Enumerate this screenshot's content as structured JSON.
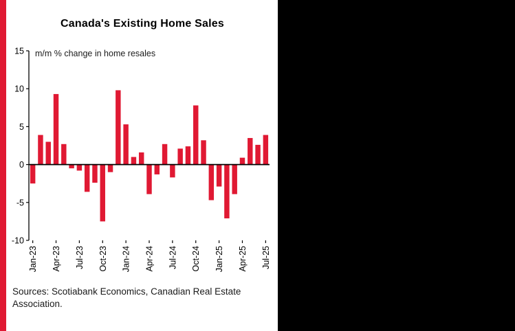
{
  "header": {
    "title": "Canada's Existing Home Sales"
  },
  "colors": {
    "accent_red": "#E01933",
    "panel_black": "#000000",
    "background": "#FFFFFF",
    "axis": "#000000"
  },
  "chart_data": {
    "type": "bar",
    "title": "Canada's Existing Home Sales",
    "subtitle": "m/m % change in home resales",
    "xlabel": "",
    "ylabel": "",
    "ylim": [
      -10,
      15
    ],
    "yticks": [
      15,
      10,
      5,
      0,
      -5,
      -10
    ],
    "grid": false,
    "legend": "none",
    "bar_color": "#E01933",
    "xtick_every": 3,
    "xtick_labels": [
      "Jan-23",
      "Apr-23",
      "Jul-23",
      "Oct-23",
      "Jan-24",
      "Apr-24",
      "Jul-24",
      "Oct-24",
      "Jan-25",
      "Apr-25",
      "Jul-25"
    ],
    "categories": [
      "Jan-23",
      "Feb-23",
      "Mar-23",
      "Apr-23",
      "May-23",
      "Jun-23",
      "Jul-23",
      "Aug-23",
      "Sep-23",
      "Oct-23",
      "Nov-23",
      "Dec-23",
      "Jan-24",
      "Feb-24",
      "Mar-24",
      "Apr-24",
      "May-24",
      "Jun-24",
      "Jul-24",
      "Aug-24",
      "Sep-24",
      "Oct-24",
      "Nov-24",
      "Dec-24",
      "Jan-25",
      "Feb-25",
      "Mar-25",
      "Apr-25",
      "May-25",
      "Jun-25",
      "Jul-25"
    ],
    "values": [
      -2.5,
      3.9,
      3.0,
      9.3,
      2.7,
      -0.5,
      -0.8,
      -3.6,
      -2.4,
      -7.5,
      -1.0,
      9.8,
      5.3,
      1.0,
      1.6,
      -3.9,
      -1.3,
      2.7,
      -1.7,
      2.1,
      2.4,
      7.8,
      3.2,
      -4.7,
      -2.9,
      -7.1,
      -3.9,
      0.9,
      3.5,
      2.6,
      3.9
    ]
  },
  "footer": {
    "source": "Sources: Scotiabank Economics, Canadian Real Estate Association."
  }
}
